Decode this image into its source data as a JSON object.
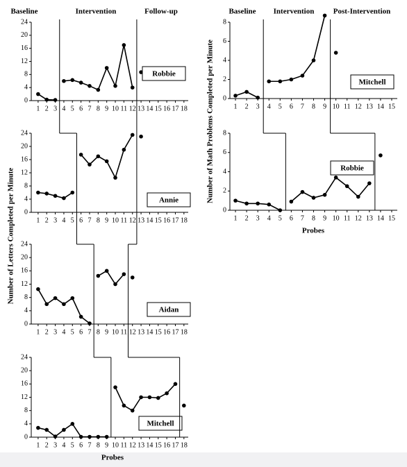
{
  "chart_data": [
    {
      "type": "line",
      "label": "Robbie",
      "phase_titles": [
        "Baseline",
        "Intervention",
        "Follow-up"
      ],
      "ylabel": "Number of Letters Completed per Minute",
      "xlim": [
        0.2,
        18.5
      ],
      "ylim": [
        0,
        24
      ],
      "xticks": [
        1,
        2,
        3,
        4,
        5,
        6,
        7,
        8,
        9,
        10,
        11,
        12,
        13,
        14,
        15,
        16,
        17,
        18
      ],
      "yticks": [
        0,
        4,
        8,
        12,
        16,
        20,
        24
      ],
      "phase_lines": [
        3.5,
        12.5
      ],
      "series": [
        {
          "color": "#000000",
          "x": [
            1,
            2,
            3
          ],
          "values": [
            2,
            0.3,
            0.2
          ]
        },
        {
          "color": "#000000",
          "x": [
            4,
            5,
            6,
            7,
            8,
            9,
            10,
            11,
            12
          ],
          "values": [
            6,
            6.3,
            5.5,
            4.5,
            3.3,
            10,
            4.5,
            17,
            4
          ]
        },
        {
          "color": "#000000",
          "x": [
            13
          ],
          "values": [
            8.7
          ]
        }
      ]
    },
    {
      "type": "line",
      "label": "Annie",
      "xlim": [
        0.2,
        18.5
      ],
      "ylim": [
        0,
        24
      ],
      "xticks": [
        1,
        2,
        3,
        4,
        5,
        6,
        7,
        8,
        9,
        10,
        11,
        12,
        13,
        14,
        15,
        16,
        17,
        18
      ],
      "yticks": [
        0,
        4,
        8,
        12,
        16,
        20,
        24
      ],
      "phase_lines": [
        5.5,
        12.5
      ],
      "series": [
        {
          "color": "#000000",
          "x": [
            1,
            2,
            3,
            4,
            5
          ],
          "values": [
            6,
            5.7,
            5,
            4.3,
            6
          ]
        },
        {
          "color": "#000000",
          "x": [
            6,
            7,
            8,
            9,
            10,
            11,
            12
          ],
          "values": [
            17.5,
            14.5,
            17,
            15.5,
            10.5,
            19,
            23.5
          ]
        },
        {
          "color": "#000000",
          "x": [
            13
          ],
          "values": [
            23
          ]
        }
      ]
    },
    {
      "type": "line",
      "label": "Aidan",
      "xlim": [
        0.2,
        18.5
      ],
      "ylim": [
        0,
        24
      ],
      "xticks": [
        1,
        2,
        3,
        4,
        5,
        6,
        7,
        8,
        9,
        10,
        11,
        12,
        13,
        14,
        15,
        16,
        17,
        18
      ],
      "yticks": [
        0,
        4,
        8,
        12,
        16,
        20,
        24
      ],
      "phase_lines": [
        7.5,
        11.5
      ],
      "series": [
        {
          "color": "#000000",
          "x": [
            1,
            2,
            3,
            4,
            5,
            6,
            7
          ],
          "values": [
            10.5,
            6,
            7.8,
            6,
            7.8,
            2.2,
            0.2
          ]
        },
        {
          "color": "#000000",
          "x": [
            8,
            9,
            10,
            11
          ],
          "values": [
            14.5,
            16,
            12,
            15
          ]
        },
        {
          "color": "#000000",
          "x": [
            12
          ],
          "values": [
            14
          ]
        }
      ]
    },
    {
      "type": "line",
      "label": "Mitchell",
      "xlabel": "Probes",
      "xlim": [
        0.2,
        18.5
      ],
      "ylim": [
        0,
        24
      ],
      "xticks": [
        1,
        2,
        3,
        4,
        5,
        6,
        7,
        8,
        9,
        10,
        11,
        12,
        13,
        14,
        15,
        16,
        17,
        18
      ],
      "yticks": [
        0,
        4,
        8,
        12,
        16,
        20,
        24
      ],
      "phase_lines": [
        9.5,
        17.5
      ],
      "series": [
        {
          "color": "#000000",
          "x": [
            1,
            2,
            3,
            4,
            5,
            6,
            7,
            8,
            9
          ],
          "values": [
            2.8,
            2.2,
            0.2,
            2.2,
            4,
            0.1,
            0.1,
            0.1,
            0.1
          ]
        },
        {
          "color": "#000000",
          "x": [
            10,
            11,
            12,
            13,
            14,
            15,
            16,
            17
          ],
          "values": [
            15,
            9.5,
            8,
            12,
            12,
            11.8,
            13.2,
            16
          ]
        },
        {
          "color": "#000000",
          "x": [
            18
          ],
          "values": [
            9.5
          ]
        }
      ]
    },
    {
      "type": "line",
      "label": "Mitchell",
      "phase_titles": [
        "Baseline",
        "Intervention",
        "Post-Intervention"
      ],
      "ylabel": "Number of Math Problems Completed per Minute",
      "xlim": [
        0.5,
        15.5
      ],
      "ylim": [
        0,
        8
      ],
      "xticks": [
        1,
        2,
        3,
        4,
        5,
        6,
        7,
        8,
        9,
        10,
        11,
        12,
        13,
        14,
        15
      ],
      "yticks": [
        0,
        2,
        4,
        6,
        8
      ],
      "phase_lines": [
        3.5,
        9.5
      ],
      "series": [
        {
          "color": "#000000",
          "x": [
            1,
            2,
            3
          ],
          "values": [
            0.3,
            0.7,
            0.1
          ]
        },
        {
          "color": "#000000",
          "x": [
            4,
            5,
            6,
            7,
            8,
            9
          ],
          "values": [
            1.8,
            1.8,
            2,
            2.4,
            4,
            8.7
          ]
        },
        {
          "color": "#000000",
          "x": [
            10
          ],
          "values": [
            4.8
          ]
        }
      ]
    },
    {
      "type": "line",
      "label": "Robbie",
      "xlabel": "Probes",
      "xlim": [
        0.5,
        15.5
      ],
      "ylim": [
        0,
        8
      ],
      "xticks": [
        1,
        2,
        3,
        4,
        5,
        6,
        7,
        8,
        9,
        10,
        11,
        12,
        13,
        14,
        15
      ],
      "yticks": [
        0,
        2,
        4,
        6,
        8
      ],
      "phase_lines": [
        5.5,
        13.5
      ],
      "series": [
        {
          "color": "#000000",
          "x": [
            1,
            2,
            3,
            4,
            5
          ],
          "values": [
            1,
            0.7,
            0.7,
            0.6,
            0
          ]
        },
        {
          "color": "#000000",
          "x": [
            6,
            7,
            8,
            9,
            10,
            11,
            12,
            13
          ],
          "values": [
            0.9,
            1.9,
            1.3,
            1.6,
            3.4,
            2.5,
            1.4,
            2.8
          ]
        },
        {
          "color": "#000000",
          "x": [
            14
          ],
          "values": [
            5.7
          ]
        }
      ]
    }
  ]
}
